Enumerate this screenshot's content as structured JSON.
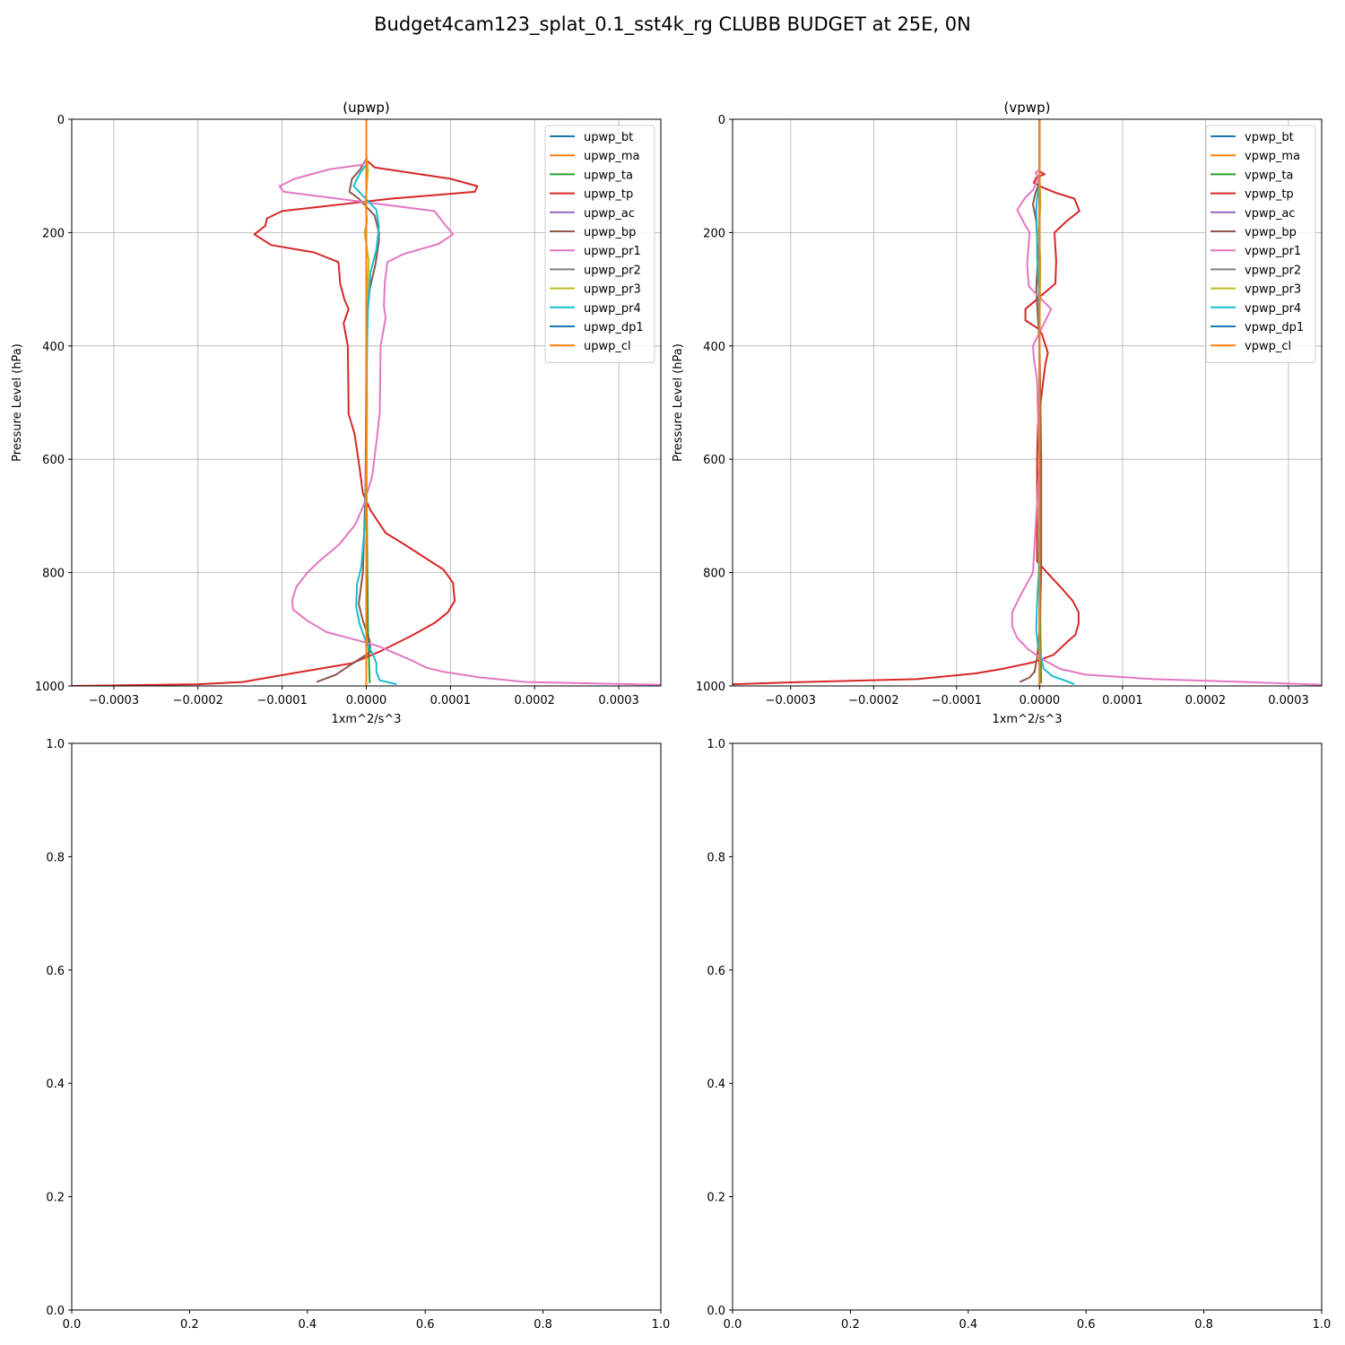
{
  "figure": {
    "title": "Budget4cam123_splat_0.1_sst4k_rg CLUBB BUDGET at 25E, 0N"
  },
  "chart_data": [
    {
      "type": "line",
      "title": "(upwp)",
      "xlabel": "1xm^2/s^3",
      "ylabel": "Pressure Level (hPa)",
      "xlim": [
        -0.00035,
        0.00035
      ],
      "ylim": [
        1000,
        0
      ],
      "xticks": [
        -0.0003,
        -0.0002,
        -0.0001,
        0.0,
        0.0001,
        0.0002,
        0.0003
      ],
      "xtick_labels": [
        "−0.0003",
        "−0.0002",
        "−0.0001",
        "0.0000",
        "0.0001",
        "0.0002",
        "0.0003"
      ],
      "yticks": [
        0,
        200,
        400,
        600,
        800,
        1000
      ],
      "ytick_labels": [
        "0",
        "200",
        "400",
        "600",
        "800",
        "1000"
      ],
      "grid": true,
      "legend": "top-right",
      "series": [
        {
          "name": "upwp_bt",
          "color": "#1f77b4",
          "x": [
            0,
            0,
            0,
            0,
            0
          ],
          "y": [
            0,
            250,
            500,
            750,
            1000
          ]
        },
        {
          "name": "upwp_ma",
          "color": "#ff7f0e",
          "x": [
            0,
            0,
            0,
            0,
            0
          ],
          "y": [
            0,
            250,
            500,
            750,
            1000
          ]
        },
        {
          "name": "upwp_ta",
          "color": "#2ca02c",
          "x": [
            0,
            0,
            0,
            2e-06,
            4e-06
          ],
          "y": [
            0,
            300,
            600,
            900,
            995
          ]
        },
        {
          "name": "upwp_tp",
          "color": "#d62728",
          "x": [
            0,
            0,
            1e-05,
            0.0001,
            0.000132,
            0.000129,
            3e-05,
            -0.0001,
            -0.000118,
            -0.00012,
            -0.000133,
            -0.000113,
            -6.2e-05,
            -3.3e-05,
            -3.1e-05,
            -2.6e-05,
            -2.1e-05,
            -2.7e-05,
            -2.2e-05,
            -2.1e-05,
            -1.4e-05,
            -8e-06,
            -4e-06,
            5e-06,
            2.3e-05,
            4.5e-05,
            9.2e-05,
            0.000103,
            0.000105,
            9.7e-05,
            8.2e-05,
            5.3e-05,
            1.5e-05,
            -1.7e-05,
            -8.9e-05,
            -0.000147,
            -0.0002,
            -0.00035
          ],
          "y": [
            0,
            72,
            85,
            105,
            118,
            128,
            140,
            162,
            175,
            188,
            203,
            222,
            235,
            252,
            290,
            318,
            335,
            360,
            400,
            520,
            555,
            615,
            660,
            690,
            730,
            750,
            795,
            818,
            850,
            870,
            888,
            912,
            940,
            960,
            978,
            993,
            997,
            1000
          ]
        },
        {
          "name": "upwp_ac",
          "color": "#9467bd",
          "x": [
            0,
            0,
            0,
            0
          ],
          "y": [
            0,
            400,
            800,
            1000
          ]
        },
        {
          "name": "upwp_bp",
          "color": "#8c564b",
          "x": [
            0,
            0,
            -8e-06,
            -1.7e-05,
            -2e-05,
            -9e-06,
            1e-05,
            1.5e-05,
            1.5e-05,
            1.1e-05,
            4e-06,
            1e-06,
            0,
            -1e-06,
            -4e-06,
            -9e-06,
            -4e-06,
            4e-06,
            5e-06,
            -1.8e-05,
            -3.6e-05,
            -5.9e-05
          ],
          "y": [
            0,
            70,
            90,
            105,
            128,
            140,
            170,
            200,
            215,
            255,
            300,
            350,
            450,
            650,
            800,
            855,
            885,
            920,
            940,
            962,
            980,
            993
          ]
        },
        {
          "name": "upwp_pr1",
          "color": "#e377c2",
          "x": [
            0,
            0,
            -4e-06,
            -4.3e-05,
            -8.5e-05,
            -0.000103,
            -9.8e-05,
            8.1e-05,
            9.3e-05,
            0.000103,
            8.6e-05,
            4.4e-05,
            2.5e-05,
            2.2e-05,
            2.1e-05,
            2.3e-05,
            1.7e-05,
            1.6e-05,
            1.2e-05,
            7e-06,
            -3e-06,
            -1.3e-05,
            -3.2e-05,
            -5.6e-05,
            -7e-05,
            -8.3e-05,
            -8.8e-05,
            -8.7e-05,
            -7e-05,
            -4.7e-05,
            -1.4e-05,
            1.5e-05,
            5.4e-05,
            7.2e-05,
            9.2e-05,
            0.000135,
            0.00019,
            0.00035
          ],
          "y": [
            0,
            72,
            80,
            88,
            105,
            118,
            128,
            162,
            185,
            203,
            220,
            238,
            252,
            290,
            330,
            350,
            400,
            518,
            570,
            630,
            680,
            715,
            750,
            780,
            800,
            825,
            848,
            865,
            885,
            905,
            918,
            930,
            955,
            968,
            975,
            985,
            993,
            998
          ]
        },
        {
          "name": "upwp_pr2",
          "color": "#7f7f7f",
          "x": [
            0,
            0,
            0,
            0,
            0
          ],
          "y": [
            0,
            250,
            500,
            750,
            1000
          ]
        },
        {
          "name": "upwp_pr3",
          "color": "#bcbd22",
          "x": [
            0,
            0,
            2e-06,
            1e-06,
            -1e-06,
            1e-06,
            -2e-06,
            3e-06,
            0,
            1e-06,
            0,
            0
          ],
          "y": [
            0,
            60,
            90,
            110,
            150,
            180,
            200,
            250,
            350,
            500,
            750,
            1000
          ]
        },
        {
          "name": "upwp_pr4",
          "color": "#17becf",
          "x": [
            0,
            0,
            -6e-06,
            -1.1e-05,
            -1.5e-05,
            -2e-06,
            1.2e-05,
            1.5e-05,
            1.2e-05,
            5e-06,
            2e-06,
            1e-06,
            -1e-06,
            -6e-06,
            -1.1e-05,
            -1.2e-05,
            -8e-06,
            -1e-06,
            8e-06,
            1.2e-05,
            1.2e-05,
            1.6e-05,
            3.6e-05
          ],
          "y": [
            0,
            80,
            92,
            105,
            118,
            138,
            160,
            190,
            230,
            270,
            330,
            400,
            700,
            790,
            820,
            860,
            890,
            920,
            945,
            960,
            975,
            990,
            997
          ]
        },
        {
          "name": "upwp_dp1",
          "color": "#1f77b4",
          "x": [
            0,
            0,
            0,
            0
          ],
          "y": [
            0,
            400,
            800,
            1000
          ]
        },
        {
          "name": "upwp_cl",
          "color": "#ff7f0e",
          "x": [
            0,
            0,
            0,
            0
          ],
          "y": [
            0,
            400,
            800,
            1000
          ]
        }
      ]
    },
    {
      "type": "line",
      "title": "(vpwp)",
      "xlabel": "1xm^2/s^3",
      "ylabel": "Pressure Level (hPa)",
      "xlim": [
        -0.00037,
        0.00034
      ],
      "ylim": [
        1000,
        0
      ],
      "xticks": [
        -0.0003,
        -0.0002,
        -0.0001,
        0.0,
        0.0001,
        0.0002,
        0.0003
      ],
      "xtick_labels": [
        "−0.0003",
        "−0.0002",
        "−0.0001",
        "0.0000",
        "0.0001",
        "0.0002",
        "0.0003"
      ],
      "yticks": [
        0,
        200,
        400,
        600,
        800,
        1000
      ],
      "ytick_labels": [
        "0",
        "200",
        "400",
        "600",
        "800",
        "1000"
      ],
      "grid": true,
      "legend": "top-right",
      "series": [
        {
          "name": "vpwp_bt",
          "color": "#1f77b4",
          "x": [
            0,
            0,
            0,
            0,
            0
          ],
          "y": [
            0,
            250,
            500,
            750,
            1000
          ]
        },
        {
          "name": "vpwp_ma",
          "color": "#ff7f0e",
          "x": [
            0,
            0,
            0,
            0,
            0
          ],
          "y": [
            0,
            250,
            500,
            750,
            1000
          ]
        },
        {
          "name": "vpwp_ta",
          "color": "#2ca02c",
          "x": [
            0,
            0,
            0,
            1e-06,
            2e-06
          ],
          "y": [
            0,
            300,
            600,
            900,
            995
          ]
        },
        {
          "name": "vpwp_tp",
          "color": "#d62728",
          "x": [
            0,
            0,
            6e-06,
            -4e-06,
            -7e-06,
            3e-06,
            2e-05,
            4.2e-05,
            4.8e-05,
            3.4e-05,
            1.8e-05,
            2e-05,
            1.9e-05,
            -1.7e-05,
            -1.7e-05,
            -1e-06,
            3e-06,
            1e-05,
            7e-06,
            5e-06,
            -2e-06,
            -3e-06,
            -3e-06,
            9e-06,
            2.5e-05,
            4e-05,
            4.7e-05,
            4.7e-05,
            4.3e-05,
            3.5e-05,
            1.7e-05,
            -7e-06,
            -4.5e-05,
            -7.8e-05,
            -0.000148,
            -0.000285,
            -0.00037
          ],
          "y": [
            0,
            92,
            97,
            103,
            112,
            120,
            130,
            140,
            162,
            178,
            200,
            250,
            290,
            335,
            355,
            370,
            380,
            412,
            432,
            455,
            540,
            600,
            780,
            800,
            825,
            850,
            870,
            890,
            910,
            920,
            945,
            958,
            970,
            978,
            988,
            993,
            997
          ]
        },
        {
          "name": "vpwp_ac",
          "color": "#9467bd",
          "x": [
            0,
            0,
            0,
            0
          ],
          "y": [
            0,
            400,
            800,
            1000
          ]
        },
        {
          "name": "vpwp_bp",
          "color": "#8c564b",
          "x": [
            0,
            0,
            -5e-06,
            -8e-06,
            -4e-06,
            -2e-06,
            -4e-06,
            0,
            2e-06,
            2e-06,
            0,
            -3e-06,
            -6e-06,
            -1.2e-05,
            -2.4e-05
          ],
          "y": [
            0,
            110,
            130,
            150,
            180,
            240,
            300,
            400,
            600,
            800,
            900,
            950,
            975,
            985,
            993
          ]
        },
        {
          "name": "vpwp_pr1",
          "color": "#e377c2",
          "x": [
            0,
            0,
            -5e-06,
            -1e-06,
            -4e-06,
            -8e-06,
            -1.7e-05,
            -2.7e-05,
            -1.8e-05,
            -1.2e-05,
            -1.5e-05,
            -1.3e-05,
            1.4e-05,
            2e-06,
            -8e-06,
            -7e-06,
            -3e-06,
            -2e-06,
            0,
            -8e-06,
            -2.3e-05,
            -3.3e-05,
            -3.3e-05,
            -2.7e-05,
            -1.4e-05,
            6e-06,
            2.5e-05,
            5.5e-05,
            0.000137,
            0.00025,
            0.00034
          ],
          "y": [
            0,
            88,
            95,
            103,
            112,
            125,
            138,
            160,
            185,
            200,
            255,
            295,
            335,
            370,
            400,
            420,
            460,
            520,
            600,
            800,
            840,
            870,
            895,
            915,
            935,
            955,
            970,
            980,
            988,
            993,
            998
          ]
        },
        {
          "name": "vpwp_pr2",
          "color": "#7f7f7f",
          "x": [
            0,
            0,
            0,
            0,
            0
          ],
          "y": [
            0,
            250,
            500,
            750,
            1000
          ]
        },
        {
          "name": "vpwp_pr3",
          "color": "#bcbd22",
          "x": [
            0,
            0,
            1e-06,
            -1e-06,
            1e-06,
            0,
            0,
            0,
            0
          ],
          "y": [
            0,
            100,
            150,
            200,
            250,
            350,
            500,
            750,
            1000
          ]
        },
        {
          "name": "vpwp_pr4",
          "color": "#17becf",
          "x": [
            0,
            0,
            -3e-06,
            -4e-06,
            -3e-06,
            -3e-06,
            -1e-06,
            0,
            0,
            -1e-06,
            -3e-06,
            -4e-06,
            -2e-06,
            2e-06,
            5e-06,
            1.6e-05,
            3e-05,
            4.2e-05
          ],
          "y": [
            0,
            110,
            140,
            160,
            200,
            240,
            300,
            400,
            700,
            800,
            850,
            900,
            930,
            950,
            970,
            983,
            990,
            997
          ]
        },
        {
          "name": "vpwp_dp1",
          "color": "#1f77b4",
          "x": [
            0,
            0,
            0,
            0
          ],
          "y": [
            0,
            400,
            800,
            1000
          ]
        },
        {
          "name": "vpwp_cl",
          "color": "#ff7f0e",
          "x": [
            0,
            0,
            0,
            0
          ],
          "y": [
            0,
            400,
            800,
            1000
          ]
        }
      ]
    },
    {
      "type": "line",
      "title": "",
      "xlim": [
        0,
        1
      ],
      "ylim": [
        0,
        1
      ],
      "xticks": [
        0,
        0.2,
        0.4,
        0.6,
        0.8,
        1.0
      ],
      "xtick_labels": [
        "0.0",
        "0.2",
        "0.4",
        "0.6",
        "0.8",
        "1.0"
      ],
      "yticks": [
        0,
        0.2,
        0.4,
        0.6,
        0.8,
        1.0
      ],
      "ytick_labels": [
        "0.0",
        "0.2",
        "0.4",
        "0.6",
        "0.8",
        "1.0"
      ],
      "grid": false,
      "series": []
    },
    {
      "type": "line",
      "title": "",
      "xlim": [
        0,
        1
      ],
      "ylim": [
        0,
        1
      ],
      "xticks": [
        0,
        0.2,
        0.4,
        0.6,
        0.8,
        1.0
      ],
      "xtick_labels": [
        "0.0",
        "0.2",
        "0.4",
        "0.6",
        "0.8",
        "1.0"
      ],
      "yticks": [
        0,
        0.2,
        0.4,
        0.6,
        0.8,
        1.0
      ],
      "ytick_labels": [
        "0.0",
        "0.2",
        "0.4",
        "0.6",
        "0.8",
        "1.0"
      ],
      "grid": false,
      "series": []
    }
  ]
}
